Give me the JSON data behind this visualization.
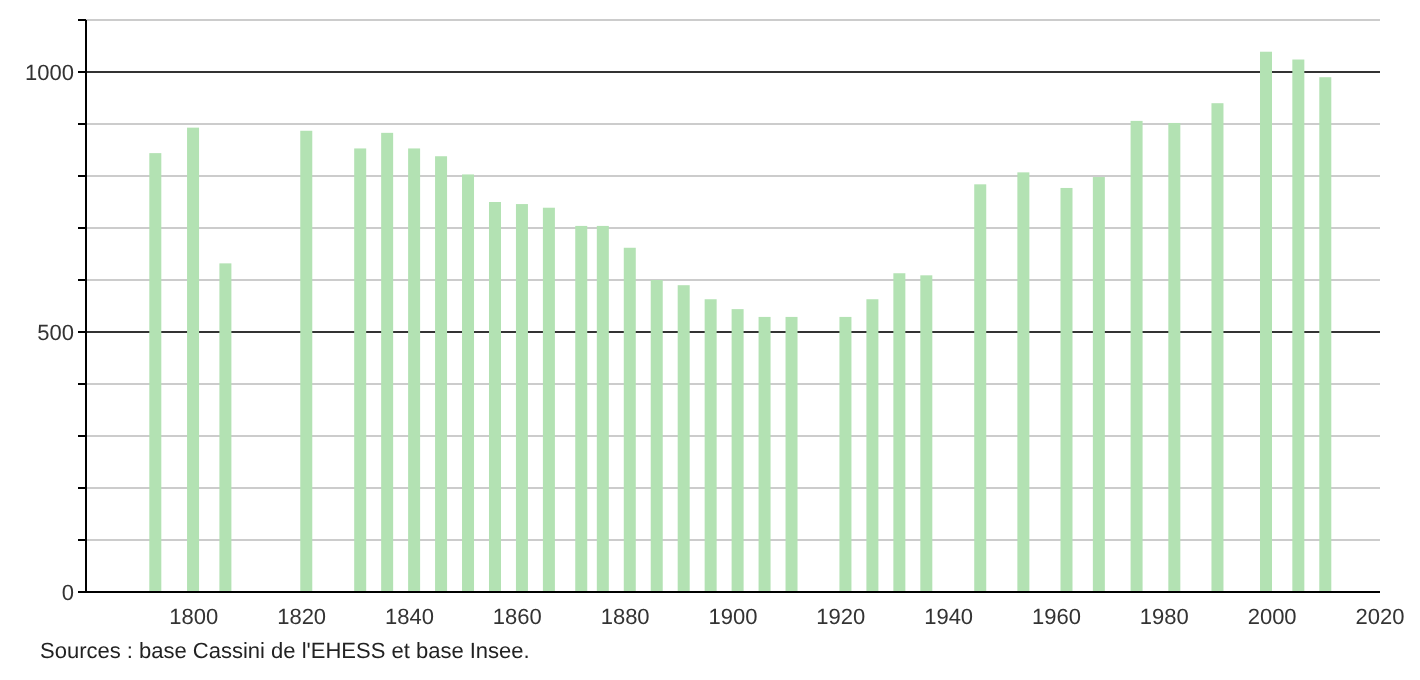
{
  "chart_data": {
    "type": "bar",
    "x": [
      1793,
      1800,
      1806,
      1821,
      1831,
      1836,
      1841,
      1846,
      1851,
      1856,
      1861,
      1866,
      1872,
      1876,
      1881,
      1886,
      1891,
      1896,
      1901,
      1906,
      1911,
      1921,
      1926,
      1931,
      1936,
      1946,
      1954,
      1962,
      1968,
      1975,
      1982,
      1990,
      1999,
      2005,
      2010
    ],
    "values": [
      844,
      893,
      632,
      887,
      853,
      883,
      853,
      838,
      803,
      750,
      746,
      739,
      704,
      704,
      662,
      600,
      590,
      563,
      544,
      529,
      529,
      529,
      563,
      613,
      609,
      784,
      807,
      777,
      798,
      906,
      902,
      940,
      1039,
      1024,
      990
    ],
    "color": "#b3e2b3",
    "xlim": [
      1780,
      2020
    ],
    "xticks": [
      1800,
      1820,
      1840,
      1860,
      1880,
      1900,
      1920,
      1940,
      1960,
      1980,
      2000,
      2020
    ],
    "ylim": [
      0,
      1100
    ],
    "yticks": [
      0,
      {
        "value": 100,
        "label": null
      },
      {
        "value": 200,
        "label": null
      },
      {
        "value": 300,
        "label": null
      },
      {
        "value": 400,
        "label": null
      },
      500,
      {
        "value": 600,
        "label": null
      },
      {
        "value": 700,
        "label": null
      },
      {
        "value": 800,
        "label": null
      },
      {
        "value": 900,
        "label": null
      },
      1000,
      {
        "value": 1100,
        "label": null
      }
    ],
    "grid": "y",
    "annotations": [
      "Sources : base Cassini de l'EHESS et base Insee."
    ]
  }
}
